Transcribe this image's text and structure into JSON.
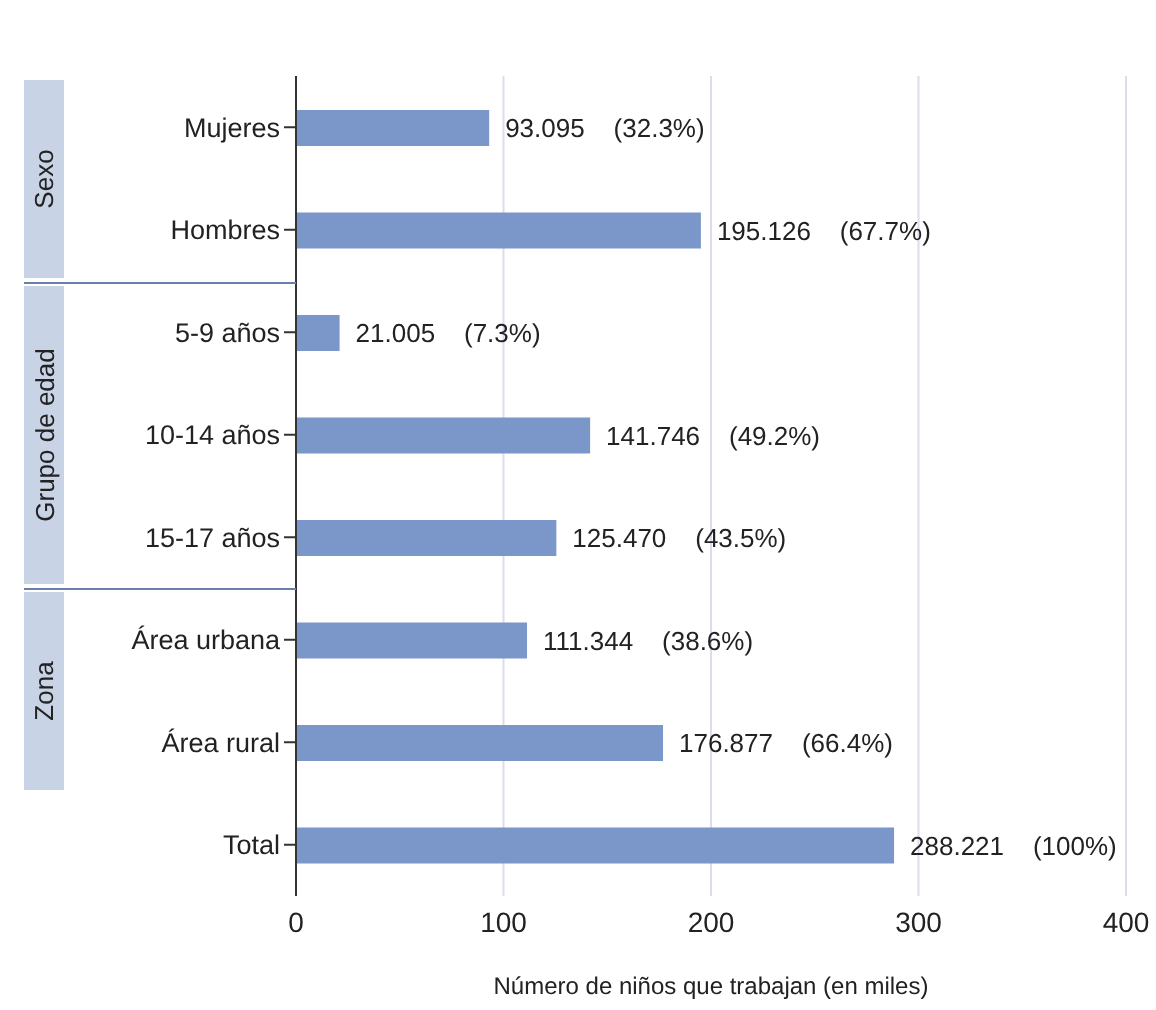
{
  "chart_data": {
    "type": "bar",
    "orientation": "horizontal",
    "categories": [
      "Mujeres",
      "Hombres",
      "5-9 años",
      "10-14 años",
      "15-17 años",
      "Área urbana",
      "Área rural",
      "Total"
    ],
    "values": [
      93.095,
      195.126,
      21.005,
      141.746,
      125.47,
      111.344,
      176.877,
      288.221
    ],
    "value_labels": [
      "93.095    (32.3%)",
      "195.126    (67.7%)",
      "21.005    (7.3%)",
      "141.746    (49.2%)",
      "125.470    (43.5%)",
      "111.344    (38.6%)",
      "176.877    (66.4%)",
      "288.221    (100%)"
    ],
    "color": "#7b96c8",
    "xlabel": "Número de niños que trabajan (en miles)",
    "xlim": [
      0,
      400
    ],
    "xticks": [
      0,
      100,
      200,
      300,
      400
    ],
    "grid": "x",
    "annotations": [
      "Sexo",
      "Grupo de edad",
      "Zona"
    ]
  }
}
